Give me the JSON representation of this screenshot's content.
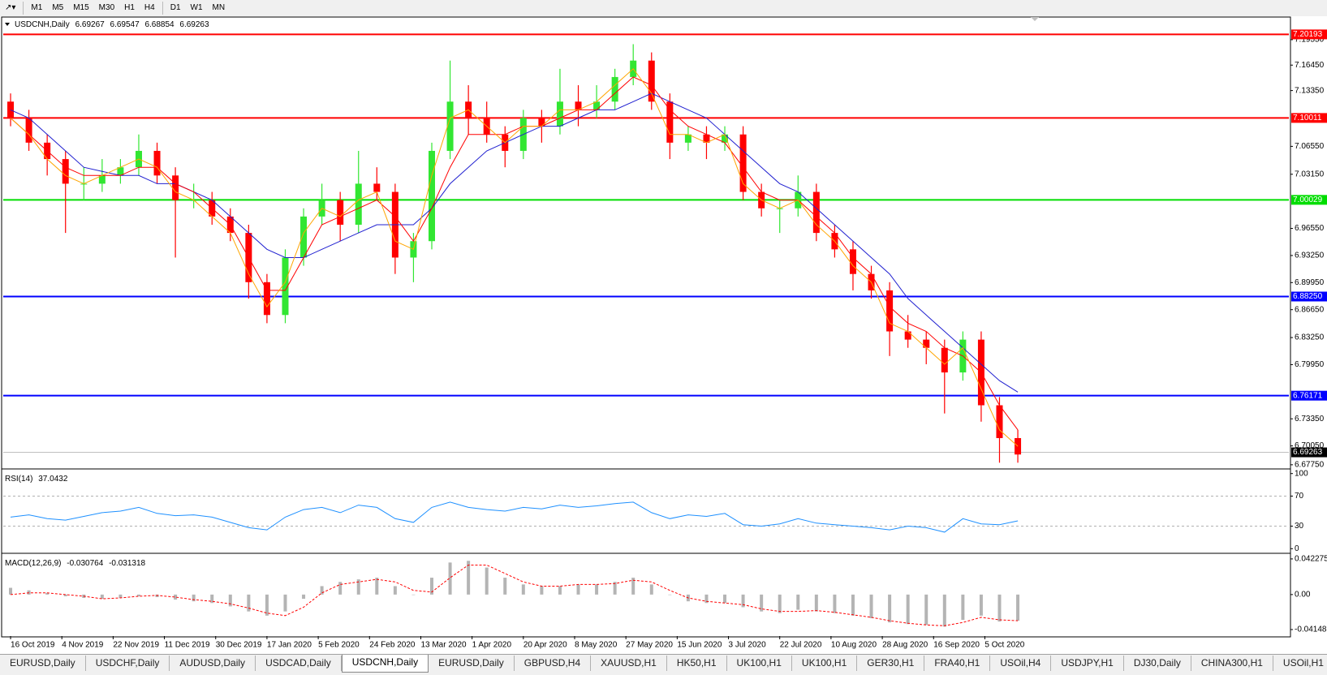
{
  "toolbar": {
    "timeframes": [
      "M1",
      "M5",
      "M15",
      "M30",
      "H1",
      "H4",
      "D1",
      "W1",
      "MN"
    ]
  },
  "tabs": {
    "items": [
      "EURUSD,Daily",
      "USDCHF,Daily",
      "AUDUSD,Daily",
      "USDCAD,Daily",
      "USDCNH,Daily",
      "EURUSD,Daily",
      "GBPUSD,H4",
      "XAUUSD,H1",
      "HK50,H1",
      "UK100,H1",
      "UK100,H1",
      "GER30,H1",
      "FRA40,H1",
      "USOil,H4",
      "USDJPY,H1",
      "DJ30,Daily",
      "CHINA300,H1",
      "USOil,H1"
    ],
    "active": 4
  },
  "chart_data": [
    {
      "type": "candlestick",
      "header": {
        "symbol": "USDCNH,Daily",
        "open": 6.69267,
        "high": 6.69547,
        "low": 6.68854,
        "close": 6.69263
      },
      "x": [
        0,
        5,
        10,
        15,
        20,
        25,
        30,
        35,
        40,
        45,
        50,
        55,
        60,
        65,
        70,
        75,
        80,
        85,
        90,
        95,
        100,
        105,
        110,
        115,
        120,
        125,
        130,
        135,
        140,
        145,
        150,
        155,
        160,
        165,
        170,
        175,
        180,
        185,
        190,
        195,
        200,
        205,
        210,
        215,
        220,
        225,
        230,
        235,
        240,
        245,
        250,
        255,
        260,
        265,
        270,
        275
      ],
      "open": [
        7.12,
        7.1,
        7.07,
        7.05,
        7.02,
        7.02,
        7.03,
        7.04,
        7.06,
        7.03,
        7.0,
        7.0,
        6.98,
        6.96,
        6.9,
        6.86,
        6.93,
        6.98,
        7.0,
        6.97,
        7.02,
        7.01,
        6.93,
        6.95,
        7.06,
        7.12,
        7.1,
        7.08,
        7.06,
        7.1,
        7.09,
        7.12,
        7.11,
        7.12,
        7.15,
        7.17,
        7.12,
        7.07,
        7.08,
        7.07,
        7.08,
        7.01,
        6.99,
        6.99,
        7.01,
        6.96,
        6.94,
        6.91,
        6.89,
        6.84,
        6.83,
        6.82,
        6.79,
        6.83,
        6.75,
        6.71
      ],
      "high": [
        7.13,
        7.11,
        7.08,
        7.06,
        7.04,
        7.05,
        7.05,
        7.08,
        7.07,
        7.04,
        7.02,
        7.01,
        6.99,
        6.97,
        6.91,
        6.94,
        6.99,
        7.02,
        7.01,
        7.06,
        7.04,
        7.02,
        6.96,
        7.07,
        7.17,
        7.14,
        7.12,
        7.09,
        7.11,
        7.11,
        7.16,
        7.14,
        7.14,
        7.16,
        7.19,
        7.18,
        7.13,
        7.09,
        7.09,
        7.09,
        7.09,
        7.02,
        7.0,
        7.03,
        7.02,
        6.97,
        6.95,
        6.92,
        6.9,
        6.86,
        6.84,
        6.83,
        6.84,
        6.84,
        6.76,
        6.72
      ],
      "low": [
        7.09,
        7.06,
        7.03,
        6.96,
        7.0,
        7.01,
        7.02,
        7.03,
        7.02,
        6.93,
        6.99,
        6.97,
        6.95,
        6.88,
        6.85,
        6.85,
        6.92,
        6.97,
        6.95,
        6.96,
        7.0,
        6.91,
        6.9,
        6.94,
        7.05,
        7.08,
        7.07,
        7.04,
        7.05,
        7.07,
        7.08,
        7.09,
        7.1,
        7.11,
        7.14,
        7.11,
        7.05,
        7.06,
        7.05,
        7.06,
        7.0,
        6.98,
        6.96,
        6.98,
        6.95,
        6.93,
        6.89,
        6.88,
        6.81,
        6.82,
        6.8,
        6.74,
        6.78,
        6.73,
        6.68,
        6.68
      ],
      "close": [
        7.1,
        7.07,
        7.05,
        7.02,
        7.02,
        7.03,
        7.04,
        7.06,
        7.03,
        7.0,
        7.0,
        6.98,
        6.96,
        6.9,
        6.86,
        6.93,
        6.98,
        7.0,
        6.97,
        7.02,
        7.01,
        6.93,
        6.95,
        7.06,
        7.12,
        7.1,
        7.08,
        7.06,
        7.1,
        7.09,
        7.12,
        7.11,
        7.12,
        7.15,
        7.17,
        7.12,
        7.07,
        7.08,
        7.07,
        7.08,
        7.01,
        6.99,
        6.99,
        7.01,
        6.96,
        6.94,
        6.91,
        6.89,
        6.84,
        6.83,
        6.82,
        6.79,
        6.83,
        6.75,
        6.71,
        6.69
      ],
      "up_color": "#32e632",
      "down_color": "#ff0000",
      "series": [
        {
          "color": "#2020d0",
          "values": [
            7.11,
            7.1,
            7.08,
            7.06,
            7.04,
            7.035,
            7.03,
            7.03,
            7.02,
            7.02,
            7.01,
            7.0,
            6.98,
            6.96,
            6.94,
            6.93,
            6.93,
            6.94,
            6.95,
            6.96,
            6.97,
            6.97,
            6.97,
            6.99,
            7.02,
            7.04,
            7.06,
            7.07,
            7.08,
            7.09,
            7.09,
            7.1,
            7.11,
            7.11,
            7.12,
            7.13,
            7.12,
            7.11,
            7.1,
            7.08,
            7.06,
            7.04,
            7.02,
            7.01,
            6.99,
            6.97,
            6.95,
            6.93,
            6.91,
            6.88,
            6.86,
            6.84,
            6.82,
            6.8,
            6.78,
            6.766
          ]
        },
        {
          "color": "#ff0000",
          "values": [
            7.1,
            7.08,
            7.06,
            7.04,
            7.03,
            7.03,
            7.03,
            7.04,
            7.04,
            7.02,
            7.01,
            6.99,
            6.97,
            6.93,
            6.89,
            6.89,
            6.93,
            6.97,
            6.98,
            6.99,
            7.0,
            6.98,
            6.95,
            6.99,
            7.04,
            7.08,
            7.08,
            7.08,
            7.09,
            7.09,
            7.1,
            7.11,
            7.11,
            7.13,
            7.15,
            7.14,
            7.11,
            7.09,
            7.08,
            7.07,
            7.04,
            7.01,
            7.0,
            7.0,
            6.98,
            6.96,
            6.93,
            6.91,
            6.87,
            6.85,
            6.84,
            6.82,
            6.81,
            6.79,
            6.75,
            6.72
          ]
        },
        {
          "color": "#ffa500",
          "values": [
            7.1,
            7.08,
            7.05,
            7.03,
            7.02,
            7.03,
            7.04,
            7.05,
            7.04,
            7.01,
            7.0,
            6.98,
            6.96,
            6.91,
            6.87,
            6.9,
            6.96,
            6.99,
            6.98,
            7.0,
            7.01,
            6.95,
            6.94,
            7.03,
            7.1,
            7.11,
            7.09,
            7.07,
            7.09,
            7.09,
            7.11,
            7.11,
            7.12,
            7.14,
            7.16,
            7.13,
            7.08,
            7.08,
            7.07,
            7.08,
            7.02,
            7.0,
            6.99,
            7.0,
            6.97,
            6.95,
            6.92,
            6.9,
            6.85,
            6.84,
            6.82,
            6.8,
            6.82,
            6.77,
            6.72,
            6.7
          ]
        }
      ],
      "levels": [
        {
          "value": 7.20193,
          "color": "#ff0000"
        },
        {
          "value": 7.10011,
          "color": "#ff0000"
        },
        {
          "value": 7.00029,
          "color": "#00dd00"
        },
        {
          "value": 6.8825,
          "label": "6.88250",
          "color": "#0000ff"
        },
        {
          "value": 6.76171,
          "color": "#0000ff"
        },
        {
          "value": 6.69263,
          "color": "#c0c0c0",
          "box_color": "#000000"
        }
      ],
      "ylim": [
        6.6744,
        7.2211
      ],
      "yticks": [
        {
          "value": 7.1955,
          "label": "7.19550"
        },
        {
          "value": 7.1645,
          "label": "7.16450"
        },
        {
          "value": 7.1335,
          "label": "7.13350"
        },
        {
          "value": 7.0655,
          "label": "7.06550"
        },
        {
          "value": 7.0315,
          "label": "7.03150"
        },
        {
          "value": 6.9655,
          "label": "6.96550"
        },
        {
          "value": 6.9325,
          "label": "6.93250"
        },
        {
          "value": 6.8995,
          "label": "6.89950"
        },
        {
          "value": 6.8665,
          "label": "6.86650"
        },
        {
          "value": 6.8325,
          "label": "6.83250"
        },
        {
          "value": 6.7995,
          "label": "6.79950"
        },
        {
          "value": 6.7335,
          "label": "6.73350"
        },
        {
          "value": 6.7005,
          "label": "6.70050"
        },
        {
          "value": 6.6775,
          "label": "6.67750"
        }
      ],
      "xlim": [
        -2,
        349
      ],
      "xticks": [
        {
          "value": 0,
          "label": "16 Oct 2019"
        },
        {
          "value": 14,
          "label": "4 Nov 2019"
        },
        {
          "value": 28,
          "label": "22 Nov 2019"
        },
        {
          "value": 42,
          "label": "11 Dec 2019"
        },
        {
          "value": 56,
          "label": "30 Dec 2019"
        },
        {
          "value": 70,
          "label": "17 Jan 2020"
        },
        {
          "value": 84,
          "label": "5 Feb 2020"
        },
        {
          "value": 98,
          "label": "24 Feb 2020"
        },
        {
          "value": 112,
          "label": "13 Mar 2020"
        },
        {
          "value": 126,
          "label": "1 Apr 2020"
        },
        {
          "value": 140,
          "label": "20 Apr 2020"
        },
        {
          "value": 154,
          "label": "8 May 2020"
        },
        {
          "value": 168,
          "label": "27 May 2020"
        },
        {
          "value": 182,
          "label": "15 Jun 2020"
        },
        {
          "value": 196,
          "label": "3 Jul 2020"
        },
        {
          "value": 210,
          "label": "22 Jul 2020"
        },
        {
          "value": 224,
          "label": "10 Aug 2020"
        },
        {
          "value": 238,
          "label": "28 Aug 2020"
        },
        {
          "value": 252,
          "label": "16 Sep 2020"
        },
        {
          "value": 266,
          "label": "5 Oct 2020"
        }
      ]
    },
    {
      "type": "line",
      "title": "RSI(14)",
      "current": 37.0432,
      "series": [
        {
          "color": "#1e90ff",
          "values": [
            42,
            45,
            40,
            38,
            43,
            48,
            50,
            55,
            47,
            44,
            45,
            42,
            35,
            28,
            25,
            42,
            52,
            55,
            48,
            58,
            55,
            40,
            35,
            55,
            62,
            55,
            52,
            50,
            55,
            53,
            58,
            55,
            57,
            60,
            62,
            48,
            40,
            45,
            43,
            47,
            32,
            30,
            33,
            40,
            34,
            32,
            30,
            28,
            25,
            30,
            28,
            22,
            40,
            33,
            32,
            37
          ]
        }
      ],
      "ylim": [
        -4,
        104
      ],
      "yticks": [
        100,
        70,
        30,
        0
      ]
    },
    {
      "type": "macd",
      "title": "MACD(12,26,9)",
      "current": [
        -0.030764,
        -0.031318
      ],
      "histogram": {
        "color": "#b4b4b4",
        "values": [
          0.008,
          0.005,
          0.002,
          -0.002,
          -0.004,
          -0.005,
          -0.004,
          -0.002,
          -0.003,
          -0.006,
          -0.008,
          -0.01,
          -0.014,
          -0.02,
          -0.025,
          -0.02,
          -0.005,
          0.01,
          0.015,
          0.018,
          0.02,
          0.01,
          0.0,
          0.02,
          0.038,
          0.04,
          0.032,
          0.02,
          0.012,
          0.01,
          0.01,
          0.012,
          0.012,
          0.015,
          0.02,
          0.012,
          0.0,
          -0.008,
          -0.01,
          -0.01,
          -0.015,
          -0.02,
          -0.022,
          -0.018,
          -0.02,
          -0.022,
          -0.025,
          -0.028,
          -0.033,
          -0.035,
          -0.036,
          -0.038,
          -0.03,
          -0.025,
          -0.032,
          -0.031
        ]
      },
      "series": [
        {
          "color": "#ff0000",
          "values": [
            0.0,
            0.002,
            0.002,
            0.0,
            -0.002,
            -0.005,
            -0.004,
            -0.002,
            -0.001,
            -0.003,
            -0.006,
            -0.008,
            -0.011,
            -0.016,
            -0.022,
            -0.025,
            -0.015,
            0.002,
            0.012,
            0.015,
            0.018,
            0.015,
            0.005,
            0.003,
            0.02,
            0.035,
            0.035,
            0.025,
            0.015,
            0.01,
            0.01,
            0.012,
            0.012,
            0.013,
            0.017,
            0.015,
            0.005,
            -0.004,
            -0.008,
            -0.01,
            -0.012,
            -0.017,
            -0.02,
            -0.02,
            -0.019,
            -0.021,
            -0.024,
            -0.027,
            -0.031,
            -0.034,
            -0.036,
            -0.037,
            -0.033,
            -0.027,
            -0.03,
            -0.031
          ]
        }
      ],
      "ylim": [
        -0.0492,
        0.047
      ],
      "yticks": [
        0.042275,
        {
          "value": 0,
          "label": "0.00"
        },
        -0.04148
      ]
    }
  ]
}
